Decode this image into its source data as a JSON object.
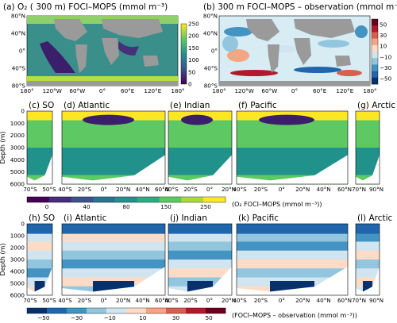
{
  "chart_data": [
    {
      "type": "heatmap",
      "title": "(a) O₂ ( 300 m) FOCI–MOPS (mmol m⁻³)",
      "xticks": [
        "180°",
        "120°W",
        "60°W",
        "0°",
        "60°E",
        "120°E",
        "180°"
      ],
      "yticks": [
        "80°N",
        "40°N",
        "0°",
        "40°S",
        "80°S"
      ],
      "colorbar": {
        "ticks": [
          "0",
          "50",
          "100",
          "150",
          "200",
          "250"
        ],
        "range": [
          0,
          250
        ],
        "colormap": "viridis"
      }
    },
    {
      "type": "heatmap",
      "title": "(b) 300 m FOCI–MOPS – observation (mmol m⁻³)",
      "xticks": [
        "180°",
        "120°W",
        "60°W",
        "0°",
        "60°E",
        "120°E",
        "180°"
      ],
      "yticks": [
        "80°N",
        "40°N",
        "0°",
        "40°S",
        "80°S"
      ],
      "colorbar": {
        "ticks": [
          "50",
          "30",
          "10",
          "−10",
          "−30",
          "−50"
        ],
        "range": [
          -50,
          50
        ],
        "colormap": "diverging"
      }
    },
    {
      "type": "heatmap",
      "row": "O2 sections",
      "ylabel": "Depth (m)",
      "yticks": [
        "0",
        "1000",
        "2000",
        "3000",
        "4000",
        "5000",
        "6000"
      ],
      "ylim": [
        6000,
        0
      ],
      "panels": [
        {
          "title": "(c) SO",
          "xticks": [
            "70°S",
            "50°S"
          ]
        },
        {
          "title": "(d) Atlantic",
          "xticks": [
            "40°S",
            "20°S",
            "0°",
            "20°N",
            "40°N",
            "60°N"
          ]
        },
        {
          "title": "(e) Indian",
          "xticks": [
            "40°S",
            "20°S",
            "0°",
            "20°N"
          ]
        },
        {
          "title": "(f) Pacific",
          "xticks": [
            "40°S",
            "20°S",
            "0°",
            "20°N",
            "40°N",
            "60°N"
          ]
        },
        {
          "title": "(g) Arctic",
          "xticks": [
            "70°N",
            "90°N"
          ]
        }
      ],
      "colorbar": {
        "ticks": [
          "0",
          "40",
          "80",
          "150",
          "250"
        ],
        "label": "(O₂ FOCI–MOPS (mmol m⁻³))",
        "range": [
          0,
          250
        ]
      }
    },
    {
      "type": "heatmap",
      "row": "O2 bias sections",
      "ylabel": "Depth (m)",
      "yticks": [
        "0",
        "1000",
        "2000",
        "3000",
        "4000",
        "5000",
        "6000"
      ],
      "ylim": [
        6000,
        0
      ],
      "panels": [
        {
          "title": "(h) SO",
          "xticks": [
            "70°S",
            "50°S"
          ]
        },
        {
          "title": "(i) Atlantic",
          "xticks": [
            "40°S",
            "20°S",
            "0°",
            "20°N",
            "40°N",
            "60°N"
          ]
        },
        {
          "title": "(j) Indian",
          "xticks": [
            "40°S",
            "20°S",
            "0°",
            "20°N"
          ]
        },
        {
          "title": "(k) Pacific",
          "xticks": [
            "40°S",
            "20°S",
            "0°",
            "20°N",
            "40°N",
            "60°N"
          ]
        },
        {
          "title": "(l) Arctic",
          "xticks": [
            "70°N",
            "90°N"
          ]
        }
      ],
      "colorbar": {
        "ticks": [
          "−50",
          "−30",
          "−10",
          "10",
          "30",
          "50"
        ],
        "label": "(FOCI–MOPS – observation (mmol m⁻³))",
        "range": [
          -50,
          50
        ]
      }
    }
  ]
}
